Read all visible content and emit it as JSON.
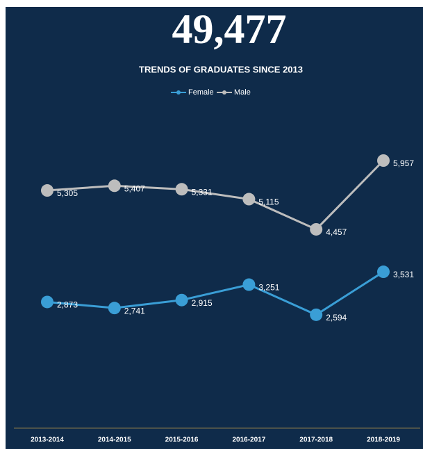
{
  "chart_data": {
    "type": "line",
    "headline": "49,477",
    "title": "TRENDS OF GRADUATES SINCE 2013",
    "categories": [
      "2013-2014",
      "2014-2015",
      "2015-2016",
      "2016-2017",
      "2017-2018",
      "2018-2019"
    ],
    "series": [
      {
        "name": "Female",
        "color": "#3a9ed6",
        "values": [
          2873,
          2741,
          2915,
          3251,
          2594,
          3531
        ],
        "value_labels": [
          "2,873",
          "2,741",
          "2,915",
          "3,251",
          "2,594",
          "3,531"
        ]
      },
      {
        "name": "Male",
        "color": "#bdbdbd",
        "values": [
          5305,
          5407,
          5331,
          5115,
          4457,
          5957
        ],
        "value_labels": [
          "5,305",
          "5,407",
          "5,331",
          "5,115",
          "4,457",
          "5,957"
        ]
      }
    ],
    "legend": "top"
  }
}
